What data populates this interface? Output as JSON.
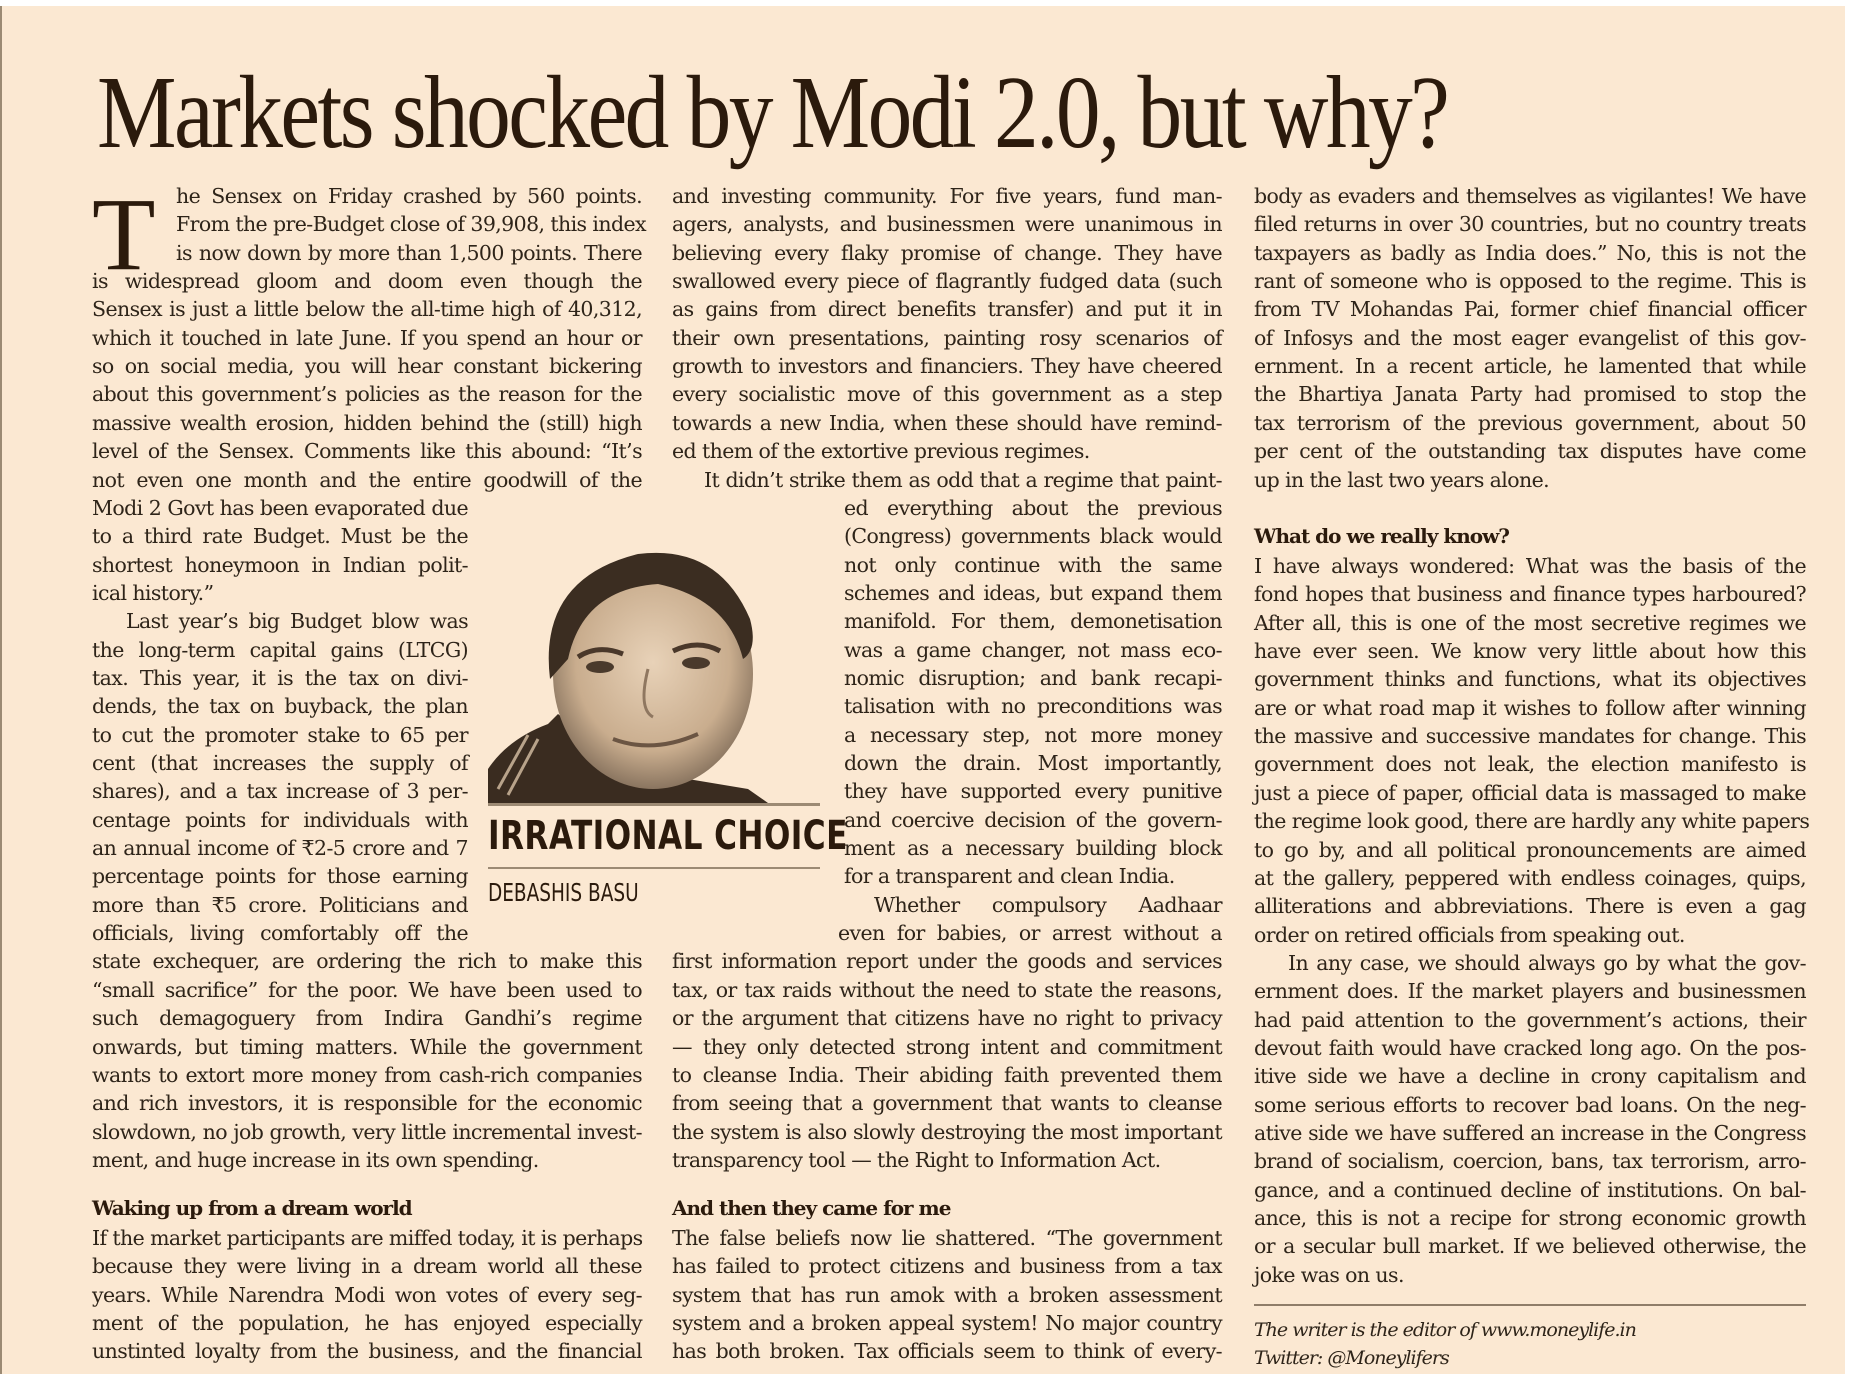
{
  "article": {
    "headline": "Markets shocked by Modi 2.0, but why?",
    "column_name": "IRRATIONAL CHOICE",
    "author": "DEBASHIS BASU",
    "photo_alt": "Portrait of Debashis Basu",
    "dropcap": "T",
    "columns": [
      {
        "lines": [
          "he Sensex on Friday crashed by 560 points.",
          "From the pre-Budget close of 39,908, this index",
          "is now down by more than 1,500 points. There",
          "is widespread gloom and doom even though the",
          "Sensex is just a little below the all-time high of 40,312,",
          "which it touched in late June. If you spend an hour or",
          "so on social media, you will hear constant bickering",
          "about this government’s policies as the reason for the",
          "massive wealth erosion, hidden behind the (still) high",
          "level of the Sensex. Comments like this abound: “It’s",
          "not even one month and the entire goodwill of the",
          "Modi 2 Govt has been evaporated due",
          "to a third rate Budget. Must be the",
          "shortest honeymoon in Indian polit-",
          "ical history.”",
          "Last year’s big Budget blow was",
          "the long-term capital gains (LTCG)",
          "tax. This year, it is the tax on divi-",
          "dends, the tax on buyback, the plan",
          "to cut the promoter stake to 65 per",
          "cent (that increases the supply of",
          "shares), and a tax increase of 3 per-",
          "centage points for individuals with",
          "an annual income of ₹2-5 crore and 7",
          "percentage points for those earning",
          "more than ₹5 crore. Politicians and",
          "officials, living comfortably off the",
          "state exchequer, are ordering the rich to make this",
          "“small sacrifice” for the poor. We have been used to",
          "such demagoguery from Indira Gandhi’s regime",
          "onwards, but timing matters. While the government",
          "wants to extort more money from cash-rich companies",
          "and rich investors, it is responsible for the economic",
          "slowdown, no job growth, very little incremental invest-",
          "ment, and huge increase in its own spending."
        ],
        "subhead": "Waking up from a dream world",
        "after_subhead": [
          "If the market participants are miffed today, it is perhaps",
          "because they were living in a dream world all these",
          "years. While Narendra Modi won votes of every seg-",
          "ment of the population, he has enjoyed especially",
          "unstinted loyalty from the business, and the financial"
        ]
      },
      {
        "lines": [
          "and investing community. For five years, fund man-",
          "agers, analysts, and businessmen were unanimous in",
          "believing every flaky promise of change. They have",
          "swallowed every piece of flagrantly fudged data (such",
          "as gains from direct benefits transfer) and put it in",
          "their own presentations, painting rosy scenarios of",
          "growth to investors and financiers. They have cheered",
          "every socialistic move of this government as a step",
          "towards a new India, when these should have remind-",
          "ed them of the extortive previous regimes.",
          "It didn’t strike them as odd that a regime that paint-",
          "ed everything about the previous",
          "(Congress) governments black would",
          "not only continue with the same",
          "schemes and ideas, but expand them",
          "manifold. For them, demonetisation",
          "was a game changer, not mass eco-",
          "nomic disruption; and bank recapi-",
          "talisation with no preconditions was",
          "a necessary step, not more money",
          "down the drain. Most importantly,",
          "they have supported every punitive",
          "and coercive decision of the govern-",
          "ment as a necessary building block",
          "for a transparent and clean India.",
          "Whether compulsory Aadhaar",
          "even for babies, or arrest without a",
          "first information report under the goods and services",
          "tax, or tax raids without the need to state the reasons,",
          "or the argument that citizens have no right to privacy",
          "— they only detected strong intent and commitment",
          "to cleanse India. Their abiding faith prevented them",
          "from seeing that a government that wants to cleanse",
          "the system is also slowly destroying the most important",
          "transparency tool — the Right to Information Act."
        ],
        "subhead": "And then they came for me",
        "after_subhead": [
          "The false beliefs now lie shattered. “The government",
          "has failed to protect citizens and business from a tax",
          "system that has run amok with a broken assessment",
          "system and a broken appeal system! No major country",
          "has both broken. Tax officials seem to think of every-"
        ]
      },
      {
        "lines": [
          "body as evaders and themselves as vigilantes! We have",
          "filed returns in over 30 countries, but no country treats",
          "taxpayers as badly as India does.” No, this is not the",
          "rant of someone who is opposed to the regime. This is",
          "from TV Mohandas Pai, former chief financial officer",
          "of Infosys and the most eager evangelist of this gov-",
          "ernment. In a recent article, he lamented that while",
          "the Bhartiya Janata Party had promised to stop the",
          "tax terrorism of the previous government, about 50",
          "per cent of the outstanding tax disputes have come",
          "up in the last two years alone."
        ],
        "subhead": "What do we really know?",
        "after_subhead": [
          "I have always wondered: What was the basis of the",
          "fond hopes that business and finance types harboured?",
          "After all, this is one of the most secretive regimes we",
          "have ever seen. We know very little about how this",
          "government thinks and functions, what its objectives",
          "are or what road map it wishes to follow after winning",
          "the massive and successive mandates for change. This",
          "government does not leak, the election manifesto is",
          "just a piece of paper, official data is massaged to make",
          "the regime look good, there are hardly any white papers",
          "to go by, and all political pronouncements are aimed",
          "at the gallery, peppered with endless coinages, quips,",
          "alliterations and abbreviations. There is even a gag",
          "order on retired officials from speaking out.",
          "In any case, we should always go by what the gov-",
          "ernment does. If the market players and businessmen",
          "had paid attention to the government’s actions, their",
          "devout faith would have cracked long ago. On the pos-",
          "itive side we have a decline in crony capitalism and",
          "some serious efforts to recover bad loans. On the neg-",
          "ative side we have suffered an increase in the Congress",
          "brand of socialism, coercion, bans, tax terrorism, arro-",
          "gance, and a continued decline of institutions. On bal-",
          "ance, this is not a recipe for strong economic growth",
          "or a secular bull market. If we believed otherwise, the",
          "joke was on us."
        ]
      }
    ],
    "footer": {
      "note": "The writer is the editor of www.moneylife.in",
      "twitter": "Twitter: @Moneylifers"
    }
  }
}
